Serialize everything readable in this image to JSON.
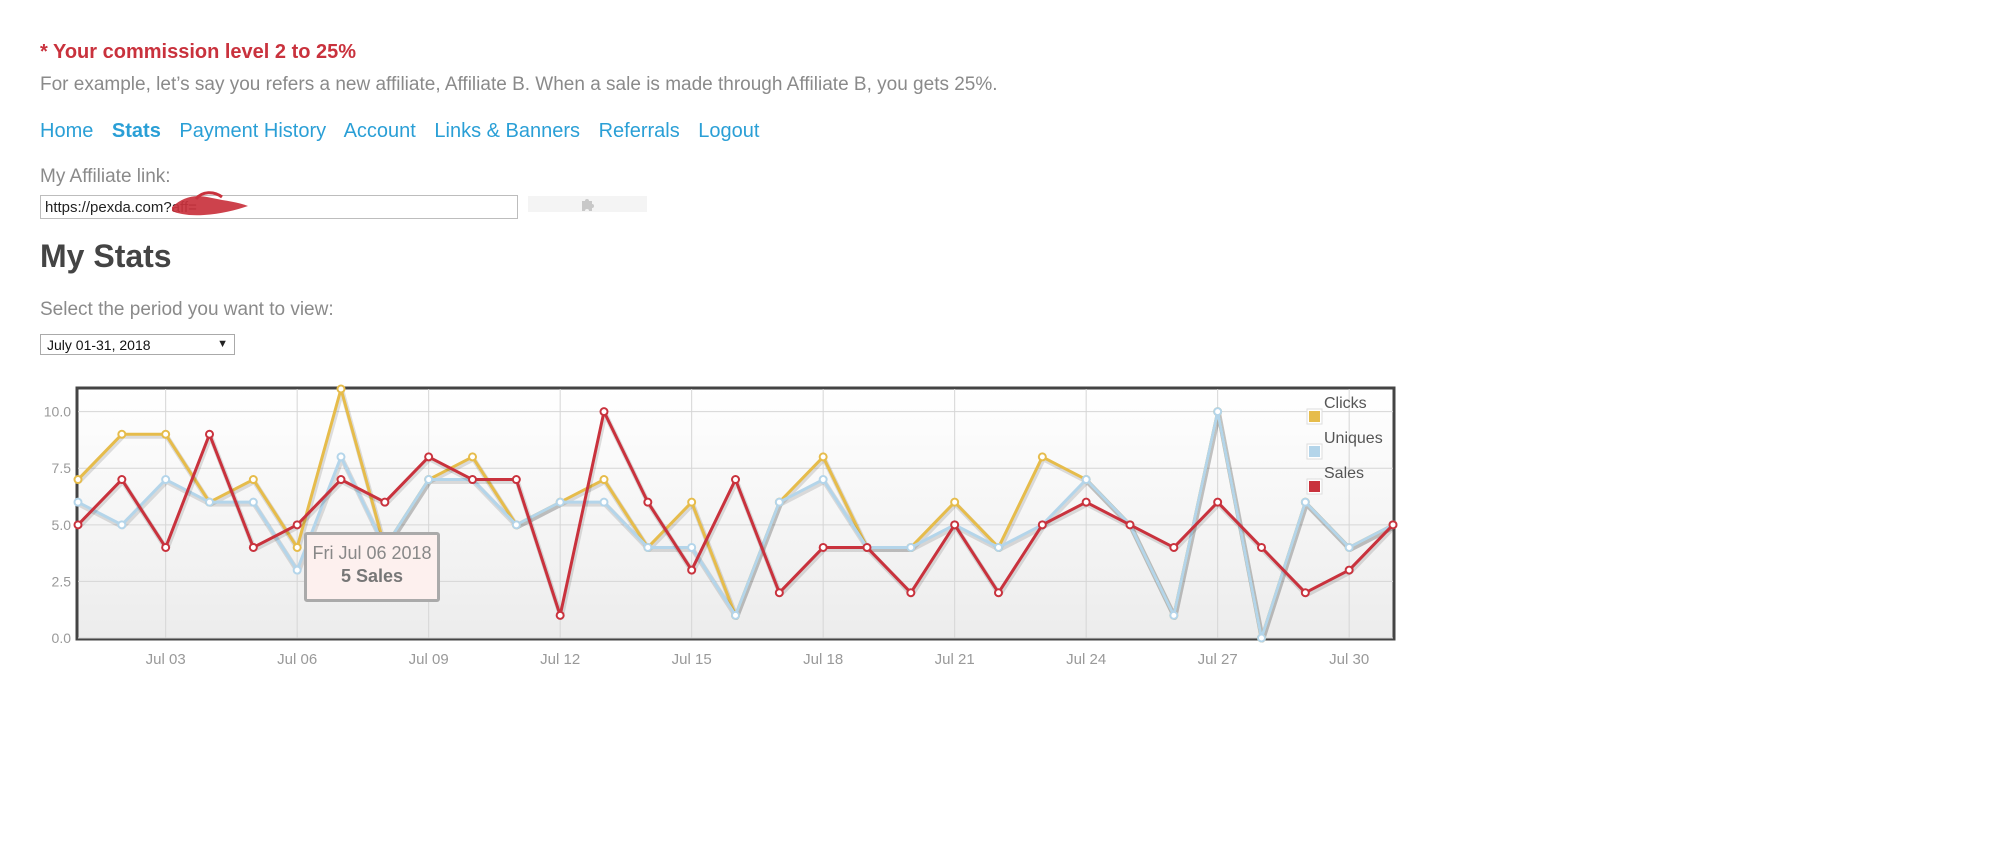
{
  "commission": {
    "heading": "* Your commission level 2 to 25%",
    "example": "For example, let’s say you refers a new affiliate, Affiliate B. When a sale is made through Affiliate B, you gets 25%."
  },
  "nav": {
    "items": [
      {
        "label": "Home",
        "active": false
      },
      {
        "label": "Stats",
        "active": true
      },
      {
        "label": "Payment History",
        "active": false
      },
      {
        "label": "Account",
        "active": false
      },
      {
        "label": "Links & Banners",
        "active": false
      },
      {
        "label": "Referrals",
        "active": false
      },
      {
        "label": "Logout",
        "active": false
      }
    ]
  },
  "affiliate": {
    "label": "My Affiliate link:",
    "link_value": "https://pexda.com?aff=",
    "copy_icon": "puzzle-icon",
    "redaction_color": "#c9323d"
  },
  "stats": {
    "title": "My Stats",
    "period_label": "Select the period you want to view:",
    "period_selected": "July 01-31, 2018"
  },
  "tooltip": {
    "date": "Fri Jul 06 2018",
    "value": "5 Sales"
  },
  "chart_data": {
    "type": "line",
    "x": [
      "Jul 01",
      "Jul 02",
      "Jul 03",
      "Jul 04",
      "Jul 05",
      "Jul 06",
      "Jul 07",
      "Jul 08",
      "Jul 09",
      "Jul 10",
      "Jul 11",
      "Jul 12",
      "Jul 13",
      "Jul 14",
      "Jul 15",
      "Jul 16",
      "Jul 17",
      "Jul 18",
      "Jul 19",
      "Jul 20",
      "Jul 21",
      "Jul 22",
      "Jul 23",
      "Jul 24",
      "Jul 25",
      "Jul 26",
      "Jul 27",
      "Jul 28",
      "Jul 29",
      "Jul 30",
      "Jul 31"
    ],
    "x_tick_labels": [
      "Jul 03",
      "Jul 06",
      "Jul 09",
      "Jul 12",
      "Jul 15",
      "Jul 18",
      "Jul 21",
      "Jul 24",
      "Jul 27",
      "Jul 30"
    ],
    "y_tick_labels": [
      "0.0",
      "2.5",
      "5.0",
      "7.5",
      "10.0"
    ],
    "ylim": [
      0,
      11
    ],
    "grid": true,
    "legend_placement": "top-right",
    "series": [
      {
        "name": "Clicks",
        "color": "#e6bc4b",
        "values": [
          7,
          9,
          9,
          6,
          7,
          4,
          11,
          4,
          7,
          8,
          5,
          6,
          7,
          4,
          6,
          1,
          6,
          8,
          4,
          4,
          6,
          4,
          8,
          7,
          5,
          1,
          10,
          0,
          6,
          4,
          5
        ]
      },
      {
        "name": "Uniques",
        "color": "#b4d5ea",
        "values": [
          6,
          5,
          7,
          6,
          6,
          3,
          8,
          4,
          7,
          7,
          5,
          6,
          6,
          4,
          4,
          1,
          6,
          7,
          4,
          4,
          5,
          4,
          5,
          7,
          5,
          1,
          10,
          0,
          6,
          4,
          5
        ]
      },
      {
        "name": "Sales",
        "color": "#c9323d",
        "values": [
          5,
          7,
          4,
          9,
          4,
          5,
          7,
          6,
          8,
          7,
          7,
          1,
          10,
          6,
          3,
          7,
          2,
          4,
          4,
          2,
          5,
          2,
          5,
          6,
          5,
          4,
          6,
          4,
          2,
          3,
          5
        ]
      }
    ]
  }
}
